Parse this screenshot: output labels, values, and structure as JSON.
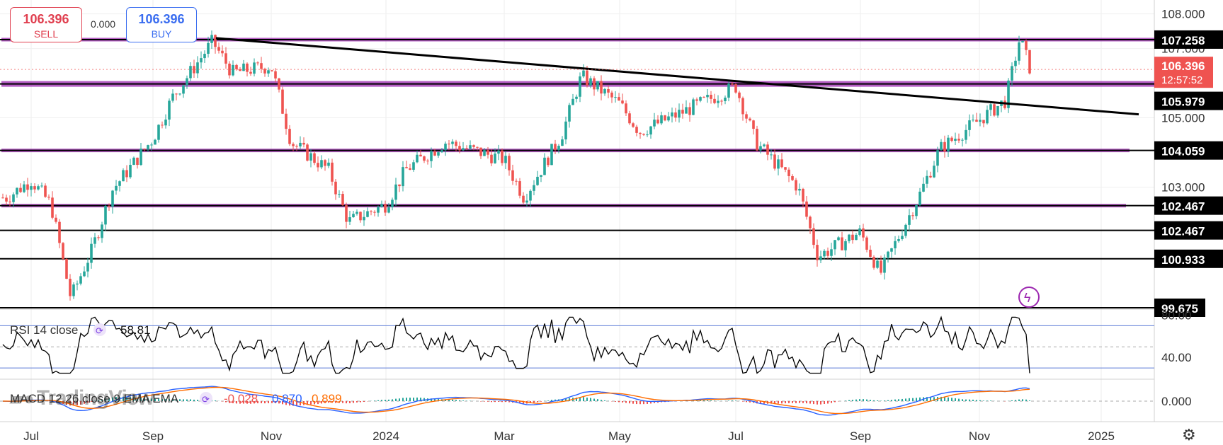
{
  "trade": {
    "sell_price": "106.396",
    "sell_label": "SELL",
    "spread": "0.000",
    "buy_price": "106.396",
    "buy_label": "BUY"
  },
  "watermark": "TradingView",
  "colors": {
    "up": "#26a69a",
    "down": "#ef5350",
    "level_line": "#000000",
    "level_band": "#9c27b0",
    "rsi": "#000000",
    "macd_line": "#2962ff",
    "signal_line": "#ff6d00",
    "current_price": "#ef5350"
  },
  "chart_data": [
    {
      "type": "candlestick",
      "ylim": [
        99.5,
        108.4
      ],
      "y_ticks": [
        "108.000",
        "107.000",
        "105.000",
        "103.000"
      ],
      "x_ticks": [
        "Jul",
        "Sep",
        "Nov",
        "2024",
        "Mar",
        "May",
        "Jul",
        "Sep",
        "Nov",
        "2025"
      ],
      "close_path": [
        [
          "Jun 2023",
          102.7
        ],
        [
          "Jul 2023",
          103.2
        ],
        [
          "Jul 2023",
          102.5
        ],
        [
          "Jul 2023",
          99.8
        ],
        [
          "Aug 2023",
          101.2
        ],
        [
          "Aug 2023",
          102.9
        ],
        [
          "Sep 2023",
          104.4
        ],
        [
          "Sep 2023",
          105.6
        ],
        [
          "Oct 2023",
          107.2
        ],
        [
          "Oct 2023",
          106.3
        ],
        [
          "Nov 2023",
          106.5
        ],
        [
          "Nov 2023",
          104.3
        ],
        [
          "Dec 2023",
          103.5
        ],
        [
          "Dec 2023",
          102.0
        ],
        [
          "Jan 2024",
          102.5
        ],
        [
          "Jan 2024",
          103.5
        ],
        [
          "Feb 2024",
          104.3
        ],
        [
          "Mar 2024",
          103.8
        ],
        [
          "Mar 2024",
          102.7
        ],
        [
          "Apr 2024",
          104.5
        ],
        [
          "Apr 2024",
          106.2
        ],
        [
          "May 2024",
          105.4
        ],
        [
          "May 2024",
          104.6
        ],
        [
          "Jun 2024",
          105.1
        ],
        [
          "Jul 2024",
          105.9
        ],
        [
          "Jul 2024",
          104.3
        ],
        [
          "Aug 2024",
          103.0
        ],
        [
          "Aug 2024",
          101.0
        ],
        [
          "Sep 2024",
          101.7
        ],
        [
          "Sep 2024",
          100.5
        ],
        [
          "Oct 2024",
          102.8
        ],
        [
          "Oct 2024",
          104.1
        ],
        [
          "Nov 2024",
          105.5
        ],
        [
          "Nov 2024",
          107.3
        ],
        [
          "Nov 2024",
          106.4
        ]
      ],
      "levels": [
        107.258,
        105.979,
        104.059,
        102.467,
        102.467,
        100.933,
        99.675
      ],
      "level_labels": [
        "107.258",
        "105.979",
        "104.059",
        "102.467",
        "102.467",
        "100.933",
        "99.675"
      ],
      "trendline": [
        [
          "Oct 2023",
          107.3
        ],
        [
          "Dec 2024",
          105.1
        ]
      ],
      "current_price": "106.396",
      "countdown": "12:57:52"
    },
    {
      "type": "line",
      "title": "RSI 14 close",
      "value": "58.81",
      "ylim": [
        20,
        85
      ],
      "y_ticks": [
        "80.00",
        "40.00"
      ],
      "bands": [
        30,
        70
      ]
    },
    {
      "type": "line",
      "title": "MACD 12 26 close 9 EMA EMA",
      "values": [
        "-0.028",
        "0.870",
        "0.899"
      ],
      "ylim": [
        -1.4,
        1.4
      ],
      "y_ticks": [
        "0.000"
      ]
    }
  ]
}
